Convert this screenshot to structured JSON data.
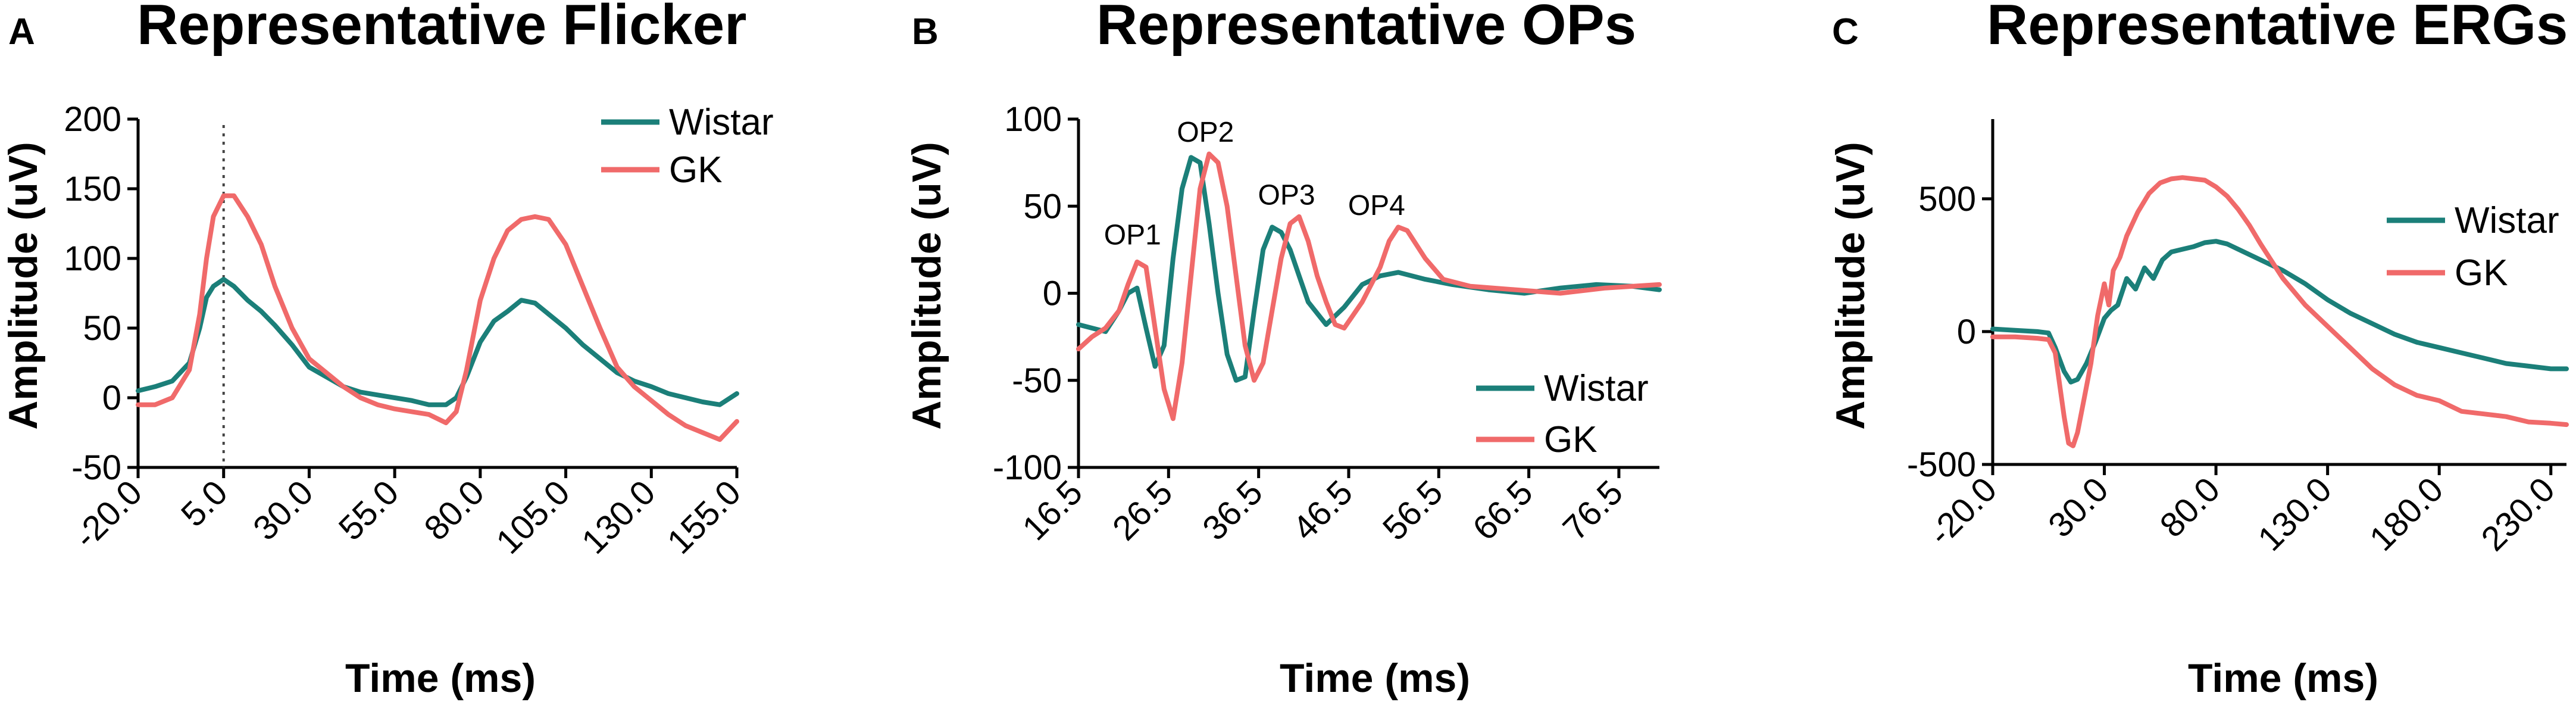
{
  "colors": {
    "wistar": "#1b7f79",
    "gk": "#f06a6a"
  },
  "chart_data": [
    {
      "type": "line",
      "panel": "A",
      "title": "Representative Flicker",
      "xlabel": "Time (ms)",
      "ylabel": "Amplitude (uV)",
      "xlim": [
        -20,
        155
      ],
      "ylim": [
        -50,
        200
      ],
      "xticks": [
        -20,
        5,
        30,
        55,
        80,
        105,
        130,
        155
      ],
      "xtick_labels": [
        "-20.0",
        "5.0",
        "30.0",
        "55.0",
        "80.0",
        "105.0",
        "130.0",
        "155.0"
      ],
      "yticks": [
        -50,
        0,
        50,
        100,
        150,
        200
      ],
      "ytick_labels": [
        "-50",
        "0",
        "50",
        "100",
        "150",
        "200"
      ],
      "legend_position": "top-right",
      "annotations": [
        {
          "type": "vline",
          "x": 5,
          "style": "dotted"
        }
      ],
      "series": [
        {
          "name": "Wistar",
          "color_key": "wistar",
          "x": [
            -20,
            -15,
            -10,
            -5,
            -2,
            0,
            2,
            5,
            8,
            12,
            16,
            20,
            25,
            30,
            35,
            40,
            45,
            50,
            55,
            60,
            65,
            70,
            73,
            76,
            80,
            84,
            88,
            92,
            96,
            100,
            105,
            110,
            115,
            120,
            125,
            130,
            135,
            140,
            145,
            150,
            155
          ],
          "y": [
            5,
            8,
            12,
            25,
            50,
            72,
            80,
            85,
            80,
            70,
            62,
            52,
            38,
            22,
            15,
            8,
            4,
            2,
            0,
            -2,
            -5,
            -5,
            0,
            15,
            40,
            55,
            62,
            70,
            68,
            60,
            50,
            38,
            28,
            18,
            12,
            8,
            3,
            0,
            -3,
            -5,
            3
          ]
        },
        {
          "name": "GK",
          "color_key": "gk",
          "x": [
            -20,
            -15,
            -10,
            -5,
            -2,
            0,
            2,
            5,
            8,
            12,
            16,
            20,
            25,
            30,
            35,
            40,
            45,
            50,
            55,
            60,
            65,
            70,
            73,
            76,
            80,
            84,
            88,
            92,
            96,
            100,
            105,
            110,
            115,
            120,
            125,
            130,
            135,
            140,
            145,
            150,
            155
          ],
          "y": [
            -5,
            -5,
            0,
            20,
            60,
            100,
            130,
            145,
            145,
            130,
            110,
            80,
            50,
            28,
            18,
            8,
            0,
            -5,
            -8,
            -10,
            -12,
            -18,
            -10,
            20,
            70,
            100,
            120,
            128,
            130,
            128,
            110,
            80,
            50,
            22,
            8,
            -2,
            -12,
            -20,
            -25,
            -30,
            -17
          ]
        }
      ]
    },
    {
      "type": "line",
      "panel": "B",
      "title": "Representative OPs",
      "xlabel": "Time (ms)",
      "ylabel": "Amplitude (uV)",
      "xlim": [
        16.5,
        81
      ],
      "ylim": [
        -100,
        100
      ],
      "xticks": [
        16.5,
        26.5,
        36.5,
        46.5,
        56.5,
        66.5,
        76.5
      ],
      "xtick_labels": [
        "16.5",
        "26.5",
        "36.5",
        "46.5",
        "56.5",
        "66.5",
        "76.5"
      ],
      "yticks": [
        -100,
        -50,
        0,
        50,
        100
      ],
      "ytick_labels": [
        "-100",
        "-50",
        "0",
        "50",
        "100"
      ],
      "legend_position": "bottom-right",
      "annotations": [
        {
          "type": "text",
          "label": "OP1",
          "x": 22.5,
          "y": 28
        },
        {
          "type": "text",
          "label": "OP2",
          "x": 30.6,
          "y": 87
        },
        {
          "type": "text",
          "label": "OP3",
          "x": 39.6,
          "y": 51
        },
        {
          "type": "text",
          "label": "OP4",
          "x": 49.6,
          "y": 45
        }
      ],
      "series": [
        {
          "name": "Wistar",
          "color_key": "wistar",
          "x": [
            16.5,
            18,
            19.5,
            21,
            22,
            23,
            24,
            25,
            26,
            27,
            28,
            29,
            30,
            31,
            32,
            33,
            34,
            35,
            36,
            37,
            38,
            39,
            40,
            41,
            42,
            44,
            46,
            48,
            50,
            52,
            55,
            58,
            62,
            66,
            70,
            74,
            78,
            81
          ],
          "y": [
            -18,
            -20,
            -22,
            -10,
            0,
            3,
            -20,
            -42,
            -30,
            20,
            60,
            78,
            75,
            40,
            0,
            -35,
            -50,
            -48,
            -10,
            25,
            38,
            35,
            25,
            10,
            -5,
            -18,
            -8,
            5,
            10,
            12,
            8,
            5,
            2,
            0,
            3,
            5,
            4,
            2
          ]
        },
        {
          "name": "GK",
          "color_key": "gk",
          "x": [
            16.5,
            18,
            19.5,
            21,
            22,
            23,
            24,
            25,
            26,
            27,
            28,
            29,
            30,
            31,
            32,
            33,
            34,
            35,
            36,
            37,
            38,
            39,
            40,
            41,
            42,
            43,
            44,
            45,
            46,
            48,
            50,
            51,
            52,
            53,
            55,
            57,
            60,
            65,
            70,
            75,
            81
          ],
          "y": [
            -32,
            -25,
            -20,
            -10,
            5,
            18,
            15,
            -20,
            -55,
            -72,
            -40,
            10,
            60,
            80,
            75,
            50,
            10,
            -30,
            -50,
            -40,
            -10,
            20,
            40,
            44,
            30,
            10,
            -5,
            -18,
            -20,
            -5,
            15,
            30,
            38,
            36,
            20,
            8,
            4,
            2,
            0,
            3,
            5
          ]
        }
      ]
    },
    {
      "type": "line",
      "panel": "C",
      "title": "Representative ERGs",
      "xlabel": "Time (ms)",
      "ylabel": "Amplitude (uV)",
      "xlim": [
        -20,
        237
      ],
      "ylim": [
        -500,
        800
      ],
      "xticks": [
        -20,
        30,
        80,
        130,
        180,
        230
      ],
      "xtick_labels": [
        "-20.0",
        "30.0",
        "80.0",
        "130.0",
        "180.0",
        "230.0"
      ],
      "yticks": [
        -500,
        0,
        500
      ],
      "ytick_labels": [
        "-500",
        "0",
        "500"
      ],
      "legend_position": "top-right",
      "series": [
        {
          "name": "Wistar",
          "color_key": "wistar",
          "x": [
            -20,
            -10,
            0,
            5,
            8,
            12,
            15,
            18,
            22,
            26,
            30,
            33,
            36,
            40,
            44,
            48,
            52,
            56,
            60,
            65,
            70,
            75,
            80,
            85,
            90,
            100,
            110,
            120,
            130,
            140,
            150,
            160,
            170,
            180,
            190,
            200,
            210,
            220,
            230,
            237
          ],
          "y": [
            10,
            5,
            0,
            -5,
            -60,
            -150,
            -190,
            -180,
            -120,
            -40,
            50,
            80,
            100,
            200,
            160,
            240,
            200,
            270,
            300,
            310,
            320,
            335,
            340,
            330,
            310,
            270,
            230,
            180,
            120,
            70,
            30,
            -10,
            -40,
            -60,
            -80,
            -100,
            -120,
            -130,
            -140,
            -140
          ]
        },
        {
          "name": "GK",
          "color_key": "gk",
          "x": [
            -20,
            -10,
            0,
            5,
            8,
            10,
            12,
            14,
            16,
            18,
            21,
            24,
            27,
            30,
            32,
            34,
            37,
            40,
            45,
            50,
            55,
            60,
            65,
            70,
            75,
            80,
            85,
            90,
            95,
            100,
            110,
            120,
            130,
            140,
            150,
            160,
            170,
            180,
            190,
            200,
            210,
            220,
            230,
            237
          ],
          "y": [
            -20,
            -20,
            -25,
            -30,
            -80,
            -200,
            -320,
            -420,
            -430,
            -380,
            -250,
            -120,
            60,
            180,
            100,
            230,
            280,
            360,
            450,
            520,
            560,
            575,
            580,
            575,
            570,
            545,
            510,
            460,
            400,
            330,
            200,
            100,
            20,
            -60,
            -140,
            -200,
            -240,
            -260,
            -300,
            -310,
            -320,
            -340,
            -345,
            -350
          ]
        }
      ]
    }
  ]
}
